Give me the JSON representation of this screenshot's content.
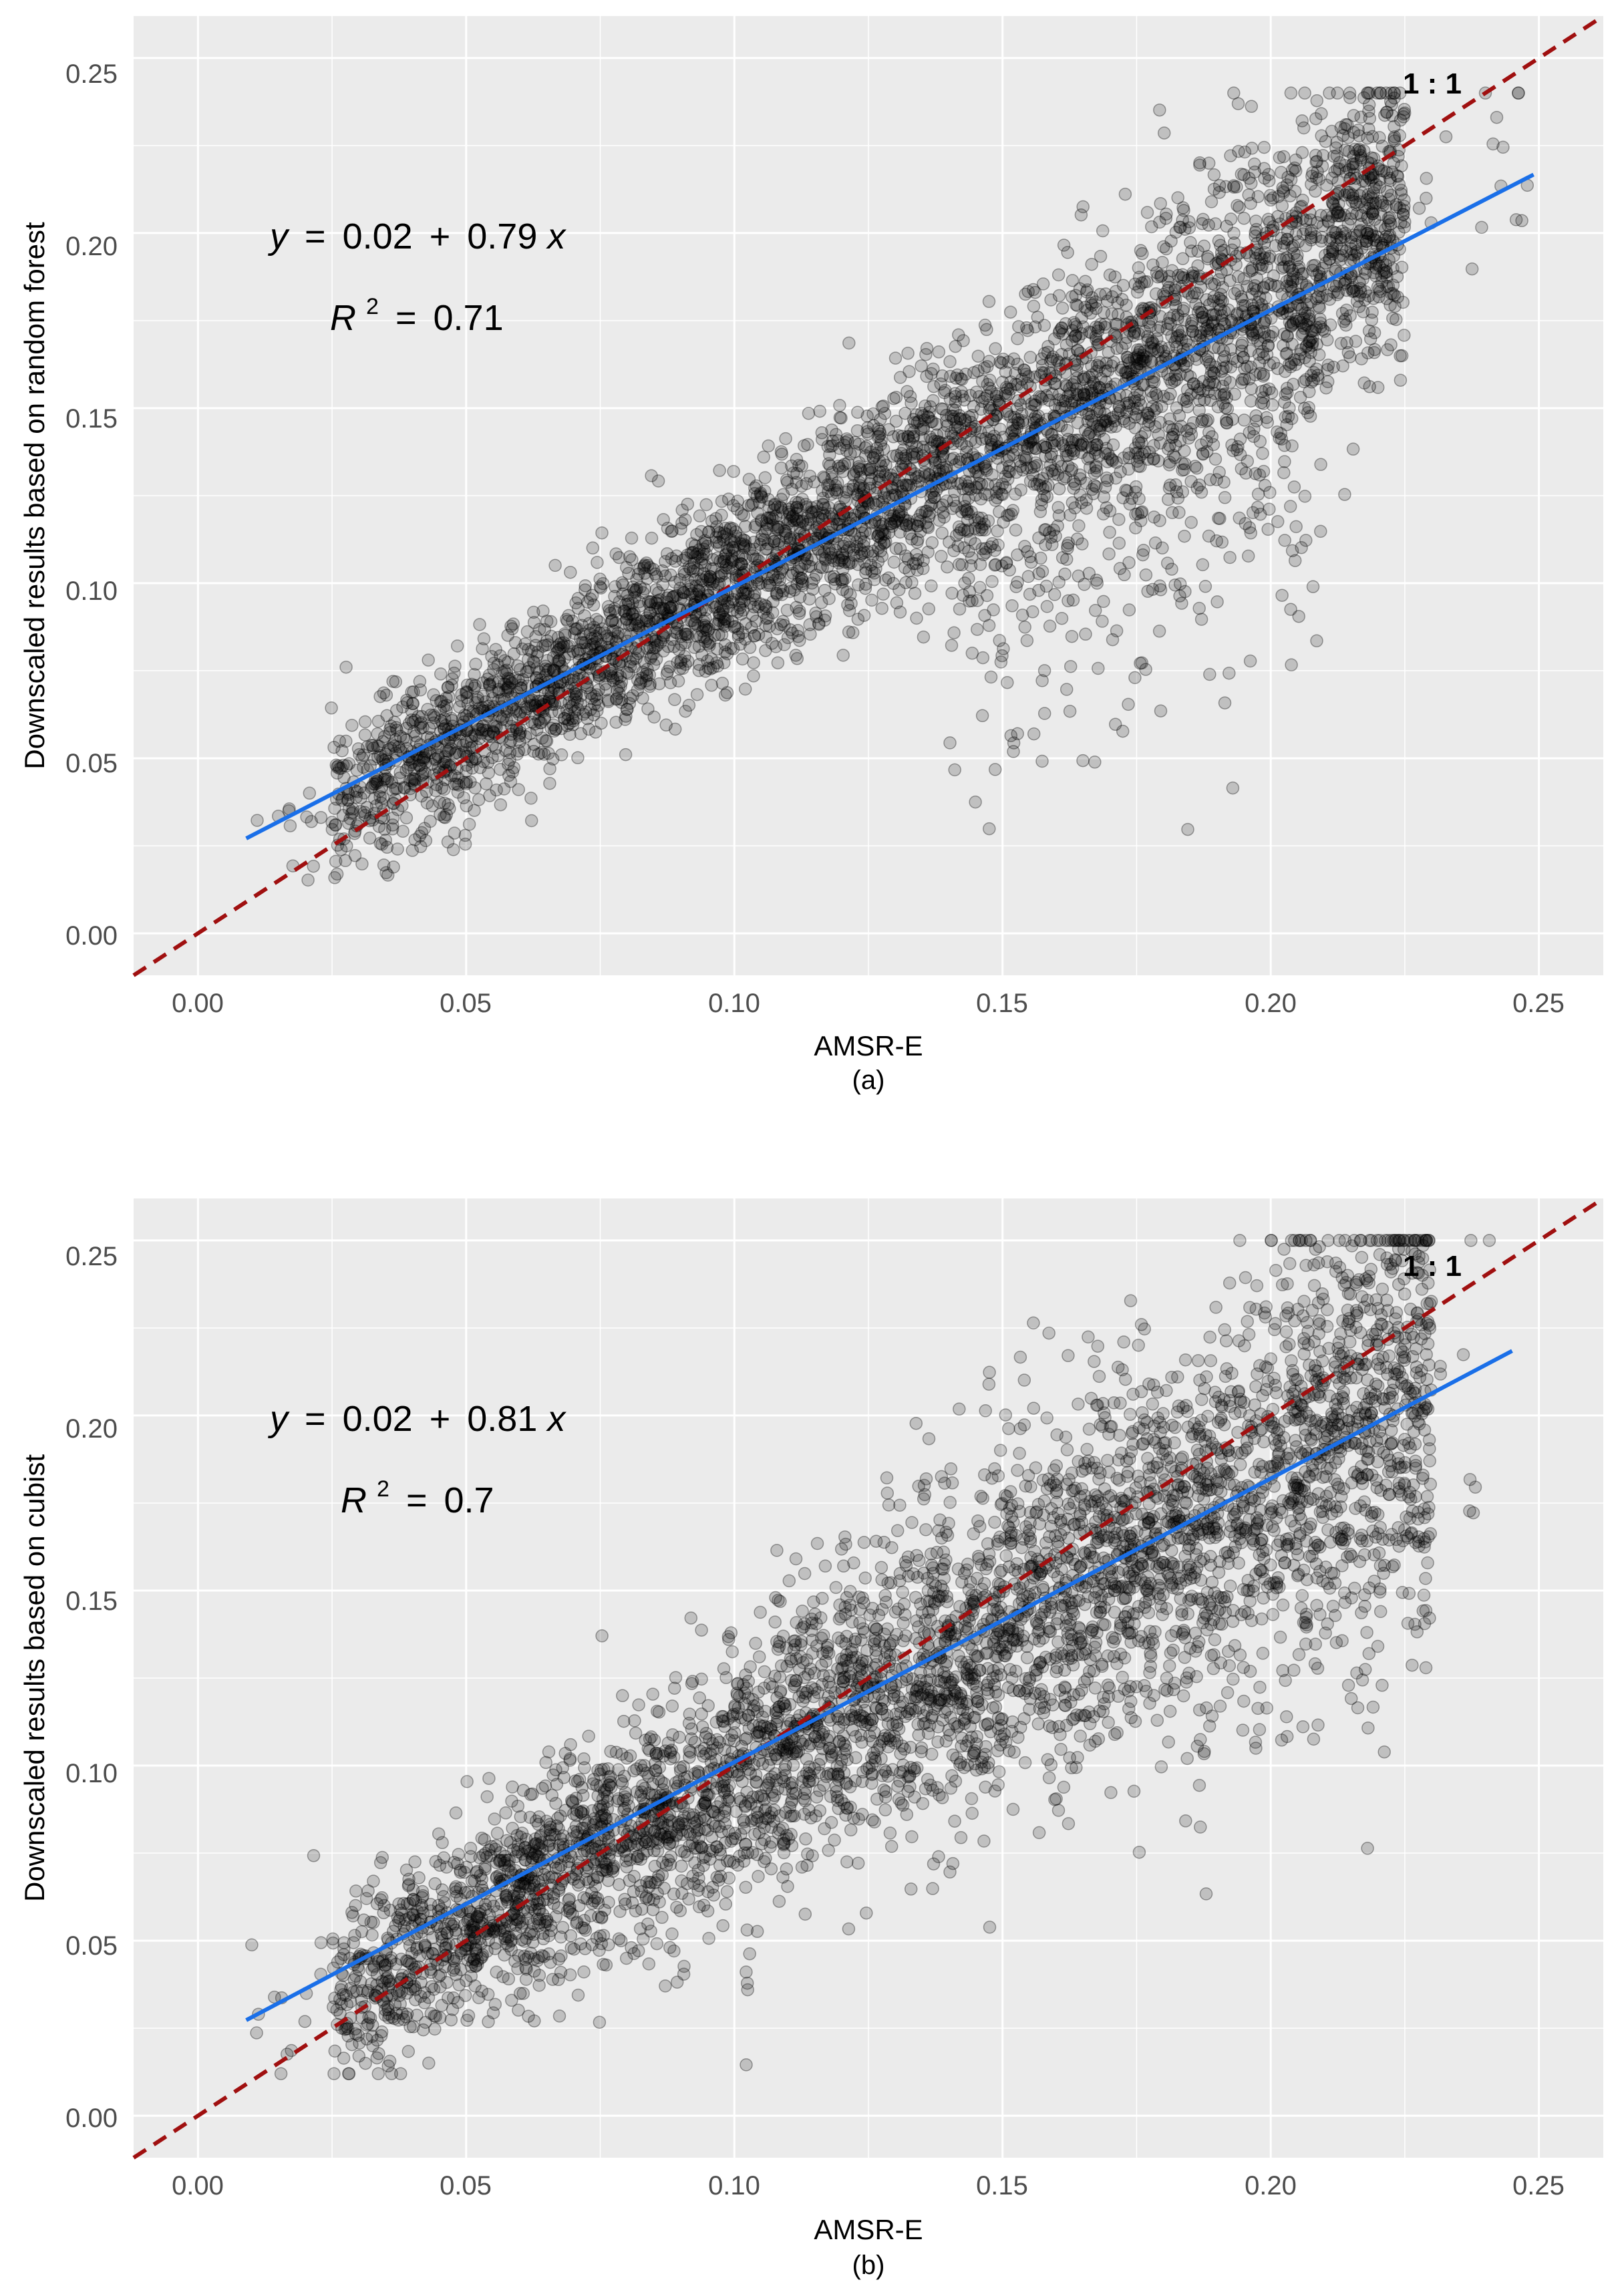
{
  "colors": {
    "panel_bg": "#ebebeb",
    "grid_major": "#ffffff",
    "points": "#000000",
    "fit_line": "#1a6fe8",
    "identity_line": "#a01010"
  },
  "chart_data": [
    {
      "type": "scatter",
      "xlabel": "AMSR-E",
      "ylabel": "Downscaled results based on random forest",
      "caption": "(a)",
      "xlim": [
        -0.012,
        0.262
      ],
      "ylim": [
        -0.012,
        0.262
      ],
      "x_ticks": [
        "0.00",
        "0.05",
        "0.10",
        "0.15",
        "0.20",
        "0.25"
      ],
      "y_ticks": [
        "0.00",
        "0.05",
        "0.10",
        "0.15",
        "0.20",
        "0.25"
      ],
      "grid": true,
      "equation": {
        "y": "y",
        "eq": "=",
        "intercept": "0.02",
        "plus": "+",
        "slope": "0.79",
        "x": "x"
      },
      "r_squared": {
        "r": "R",
        "sup": "2",
        "eq": "=",
        "value": "0.71"
      },
      "identity_label": "1 : 1",
      "fit": {
        "intercept": 0.02,
        "slope": 0.79,
        "x_range": [
          0.009,
          0.249
        ]
      },
      "identity_line": {
        "slope": 1,
        "intercept": 0
      },
      "point_cloud": {
        "x_range": [
          0.01,
          0.248
        ],
        "y_range": [
          0.006,
          0.24
        ]
      }
    },
    {
      "type": "scatter",
      "xlabel": "AMSR-E",
      "ylabel": "Downscaled results based on cubist",
      "caption": "(b)",
      "xlim": [
        -0.012,
        0.262
      ],
      "ylim": [
        -0.012,
        0.262
      ],
      "x_ticks": [
        "0.00",
        "0.05",
        "0.10",
        "0.15",
        "0.20",
        "0.25"
      ],
      "y_ticks": [
        "0.00",
        "0.05",
        "0.10",
        "0.15",
        "0.20",
        "0.25"
      ],
      "grid": true,
      "equation": {
        "y": "y",
        "eq": "=",
        "intercept": "0.02",
        "plus": "+",
        "slope": "0.81",
        "x": "x"
      },
      "r_squared": {
        "r": "R",
        "sup": "2",
        "eq": "=",
        "value": "0.7"
      },
      "identity_label": "1 : 1",
      "fit": {
        "intercept": 0.02,
        "slope": 0.81,
        "x_range": [
          0.009,
          0.245
        ]
      },
      "identity_line": {
        "slope": 1,
        "intercept": 0
      },
      "point_cloud": {
        "x_range": [
          0.01,
          0.245
        ],
        "y_range": [
          0.012,
          0.25
        ]
      }
    }
  ]
}
